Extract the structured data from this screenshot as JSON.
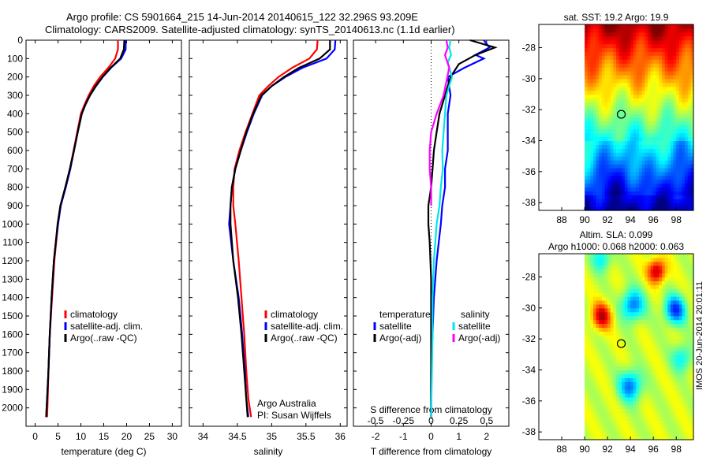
{
  "header": {
    "line1": "Argo profile: CS 5901664_215 14-Jun-2014 20140615_122 32.296S 93.209E",
    "line2": "Climatology: CARS2009. Satellite-adjusted climatology: synTS_20140613.nc (1.1d earlier)"
  },
  "colors": {
    "climatology": "#ff0000",
    "satellite": "#0000ff",
    "argo": "#000000",
    "s_satellite": "#00e5ee",
    "s_argo": "#ff00ff"
  },
  "chart_data": [
    {
      "id": "temperature",
      "type": "line",
      "xlabel": "temperature (deg C)",
      "ylabel": "",
      "xlim": [
        -2,
        32
      ],
      "ylim": [
        2100,
        0
      ],
      "xticks": [
        0,
        5,
        10,
        15,
        20,
        25,
        30
      ],
      "yticks": [
        0,
        100,
        200,
        300,
        400,
        500,
        600,
        700,
        800,
        900,
        1000,
        1100,
        1200,
        1300,
        1400,
        1500,
        1600,
        1700,
        1800,
        1900,
        2000
      ],
      "legend": [
        "climatology",
        "satellite-adj. clim.",
        "Argo(..raw -QC)"
      ],
      "series": [
        {
          "name": "climatology",
          "color": "#ff0000",
          "x": [
            18.1,
            18.1,
            17.5,
            16.0,
            14.2,
            12.8,
            11.7,
            10.8,
            10.0,
            9.2,
            8.4,
            7.6,
            6.6,
            5.6,
            5.0,
            4.6,
            4.2,
            3.7,
            3.2,
            2.9,
            2.75,
            2.6
          ],
          "y": [
            0,
            50,
            100,
            150,
            200,
            250,
            300,
            350,
            400,
            500,
            600,
            700,
            800,
            900,
            1000,
            1100,
            1200,
            1400,
            1600,
            1800,
            1950,
            2050
          ]
        },
        {
          "name": "satellite-adj. clim.",
          "color": "#0000ff",
          "x": [
            19.8,
            19.8,
            18.8,
            16.6,
            14.8,
            13.3,
            12.0,
            11.0,
            10.2,
            9.3,
            8.5,
            7.7,
            6.7,
            5.6,
            5.0,
            4.5,
            4.1,
            3.6,
            3.2,
            2.9,
            2.6,
            2.4
          ],
          "y": [
            0,
            50,
            100,
            150,
            200,
            250,
            300,
            350,
            400,
            500,
            600,
            700,
            800,
            900,
            1000,
            1100,
            1200,
            1400,
            1600,
            1800,
            1950,
            2050
          ]
        },
        {
          "name": "Argo(..raw -QC)",
          "color": "#000000",
          "x": [
            19.5,
            19.4,
            18.6,
            16.5,
            14.7,
            13.2,
            12.0,
            11.0,
            10.2,
            9.3,
            8.5,
            7.6,
            6.6,
            5.5,
            4.9,
            4.5,
            4.1,
            3.6,
            3.2,
            2.9,
            2.6,
            2.4
          ],
          "y": [
            0,
            50,
            100,
            150,
            200,
            250,
            300,
            350,
            400,
            500,
            600,
            700,
            800,
            900,
            1000,
            1100,
            1200,
            1400,
            1600,
            1800,
            1950,
            2050
          ]
        }
      ]
    },
    {
      "id": "salinity",
      "type": "line",
      "xlabel": "salinity",
      "ylabel": "",
      "xlim": [
        33.8,
        36.1
      ],
      "ylim": [
        2100,
        0
      ],
      "xticks": [
        34,
        34.5,
        35,
        35.5,
        36
      ],
      "legend": [
        "climatology",
        "satellite-adj. clim.",
        "Argo(..raw -QC)"
      ],
      "annotation": [
        "Argo Australia",
        "PI: Susan Wijffels"
      ],
      "series": [
        {
          "name": "climatology",
          "color": "#ff0000",
          "x": [
            35.67,
            35.66,
            35.55,
            35.3,
            35.1,
            34.95,
            34.82,
            34.72,
            34.62,
            34.53,
            34.46,
            34.44,
            34.44,
            34.47,
            34.52,
            34.56,
            34.6,
            34.63,
            34.66,
            34.7
          ],
          "y": [
            0,
            50,
            100,
            150,
            200,
            250,
            300,
            400,
            500,
            600,
            700,
            800,
            900,
            1000,
            1200,
            1400,
            1600,
            1800,
            1950,
            2050
          ]
        },
        {
          "name": "satellite-adj. clim.",
          "color": "#0000ff",
          "x": [
            35.93,
            35.92,
            35.8,
            35.45,
            35.2,
            35.0,
            34.86,
            34.74,
            34.64,
            34.55,
            34.47,
            34.42,
            34.4,
            34.38,
            34.44,
            34.52,
            34.57,
            34.61,
            34.63,
            34.66
          ],
          "y": [
            0,
            50,
            100,
            150,
            200,
            250,
            300,
            400,
            500,
            600,
            700,
            800,
            900,
            1000,
            1200,
            1400,
            1600,
            1800,
            1950,
            2050
          ]
        },
        {
          "name": "Argo(..raw -QC)",
          "color": "#000000",
          "x": [
            35.85,
            35.85,
            35.7,
            35.4,
            35.18,
            35.0,
            34.85,
            34.73,
            34.63,
            34.55,
            34.47,
            34.42,
            34.4,
            34.4,
            34.44,
            34.51,
            34.56,
            34.6,
            34.63,
            34.65
          ],
          "y": [
            0,
            50,
            100,
            150,
            200,
            250,
            300,
            400,
            500,
            600,
            700,
            800,
            900,
            1000,
            1200,
            1400,
            1600,
            1800,
            1950,
            2050
          ]
        }
      ]
    },
    {
      "id": "differences",
      "type": "line",
      "xlabel": "T difference from climatology",
      "xlabel_top": "S difference from climatology",
      "xlim": [
        -2.8,
        2.8
      ],
      "ylim": [
        2100,
        0
      ],
      "xticks": [
        -2,
        -1,
        0,
        1,
        2
      ],
      "xtick_labels": [
        "-2",
        "-1",
        "0",
        "1",
        "2"
      ],
      "sticks": [
        -0.5,
        -0.25,
        0,
        0.25,
        0.5
      ],
      "stick_labels": [
        "-0.5",
        "-0.25",
        "0",
        "0.25",
        "0.5"
      ],
      "legend_headers": [
        "temperature",
        "salinity"
      ],
      "legend": [
        "satellite",
        "Argo(-adj)",
        "satellite",
        "Argo(-adj)"
      ],
      "series": [
        {
          "name": "satellite",
          "color": "#0000ff",
          "x": [
            1.9,
            2.1,
            1.6,
            1.9,
            1.2,
            0.6,
            0.7,
            0.6,
            0.6,
            0.6,
            0.5,
            0.5,
            0.4,
            0.35,
            0.2,
            0.1,
            0.05,
            0.0,
            0.0
          ],
          "y": [
            0,
            40,
            80,
            100,
            150,
            200,
            300,
            400,
            500,
            600,
            700,
            800,
            900,
            1000,
            1200,
            1400,
            1600,
            1800,
            2050
          ]
        },
        {
          "name": "Argo(-adj)",
          "color": "#000000",
          "x": [
            1.4,
            2.3,
            1.6,
            1.0,
            0.7,
            0.5,
            0.3,
            0.2,
            0.1,
            0.05,
            0.0,
            -0.1,
            -0.1,
            -0.05,
            0.0,
            0.0,
            0.0
          ],
          "y": [
            0,
            40,
            80,
            130,
            200,
            300,
            400,
            500,
            600,
            700,
            800,
            900,
            1000,
            1100,
            1300,
            1600,
            2050
          ]
        },
        {
          "name": "satellite (S)",
          "color": "#00e5ee",
          "x": [
            0.7,
            0.65,
            0.72,
            0.6,
            0.75,
            0.55,
            0.5,
            0.45,
            0.4,
            0.42,
            0.35,
            0.3,
            0.2,
            0.1,
            0.05,
            0.05,
            0.0
          ],
          "y": [
            0,
            40,
            80,
            120,
            200,
            300,
            400,
            500,
            600,
            700,
            800,
            900,
            1000,
            1200,
            1400,
            1600,
            2050
          ]
        },
        {
          "name": "Argo(-adj) (S)",
          "color": "#ff00ff",
          "x": [
            0.55,
            0.6,
            0.5,
            0.65,
            0.45,
            0.2,
            0.0,
            -0.05,
            -0.05,
            0.0,
            0.0
          ],
          "y": [
            0,
            40,
            80,
            150,
            300,
            400,
            500,
            600,
            700,
            800,
            900
          ]
        }
      ]
    },
    {
      "id": "sst_map",
      "type": "heatmap",
      "title": "sat. SST: 19.2 Argo: 19.9",
      "xlim": [
        86,
        99.5
      ],
      "ylim": [
        -38.5,
        -26.5
      ],
      "xticks": [
        88,
        90,
        92,
        94,
        96,
        98
      ],
      "yticks": [
        -28,
        -30,
        -32,
        -34,
        -36,
        -38
      ],
      "data_x_range": [
        90,
        99.5
      ],
      "marker": {
        "lon": 93.2,
        "lat": -32.3
      }
    },
    {
      "id": "sla_map",
      "type": "heatmap",
      "title": [
        "Altim. SLA: 0.099",
        "Argo h1000: 0.068 h2000: 0.063"
      ],
      "xlim": [
        86,
        99.5
      ],
      "ylim": [
        -38.5,
        -26.5
      ],
      "xticks": [
        88,
        90,
        92,
        94,
        96,
        98
      ],
      "yticks": [
        -28,
        -30,
        -32,
        -34,
        -36,
        -38
      ],
      "data_x_range": [
        90,
        99.5
      ],
      "marker": {
        "lon": 93.2,
        "lat": -32.3
      }
    }
  ],
  "stamp": "IMOS 20-Jun-2014 20:01:11"
}
